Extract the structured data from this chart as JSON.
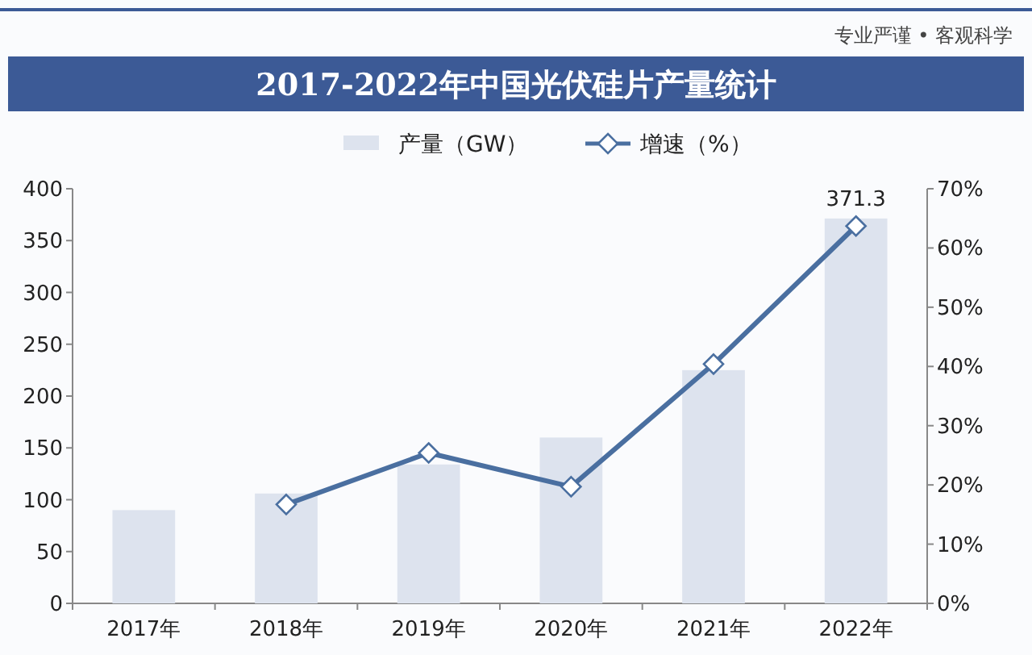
{
  "chart_data": {
    "type": "bar",
    "title": "2017-2022年中国光伏硅片产量统计",
    "annotations": [
      "专业严谨 • 客观科学"
    ],
    "categories": [
      "2017年",
      "2018年",
      "2019年",
      "2020年",
      "2021年",
      "2022年"
    ],
    "series": [
      {
        "name": "产量（GW）",
        "color": "#dde3ee",
        "values": [
          90,
          106,
          134,
          160,
          225,
          371.3
        ],
        "value_labels": [
          null,
          null,
          null,
          null,
          null,
          "371.3"
        ]
      },
      {
        "name": "增速（%）",
        "type": "line",
        "axis": "y2",
        "color": "#4a6fa0",
        "marker": "diamond",
        "values": [
          null,
          16.7,
          25.4,
          19.7,
          40.4,
          63.7
        ]
      }
    ],
    "ylim": [
      0,
      400
    ],
    "yticks": [
      0,
      50,
      100,
      150,
      200,
      250,
      300,
      350,
      400
    ],
    "y2lim": [
      0,
      70
    ],
    "y2ticks": [
      {
        "value": 0,
        "label": "0%"
      },
      {
        "value": 10,
        "label": "10%"
      },
      {
        "value": 20,
        "label": "20%"
      },
      {
        "value": 30,
        "label": "30%"
      },
      {
        "value": 40,
        "label": "40%"
      },
      {
        "value": 50,
        "label": "50%"
      },
      {
        "value": 60,
        "label": "60%"
      },
      {
        "value": 70,
        "label": "70%"
      }
    ],
    "legend": "top",
    "grid": false
  }
}
